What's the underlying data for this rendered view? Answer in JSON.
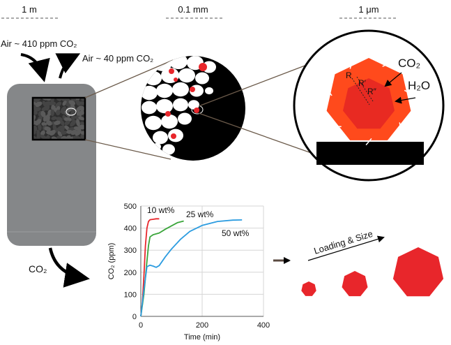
{
  "scale_labels": {
    "macro": "1 m",
    "micro": "0.1 mm",
    "nano": "1 μm"
  },
  "flows": {
    "air_in": "Air ~ 410 ppm CO₂",
    "air_out": "Air ~ 40 ppm CO₂",
    "co2_out": "CO₂"
  },
  "particle_zoom": {
    "co2_label": "CO₂",
    "h2o_label": "H₂O",
    "radius_labels": [
      "R",
      "R′",
      "R″"
    ]
  },
  "trend": {
    "label": "Loading & Size"
  },
  "colors": {
    "column": "#858789",
    "pellet_bed": "#3a3a3a",
    "support_sphere": "#ffffff",
    "amine": "#e8262b",
    "particle_outer": "#ff4a1c",
    "particle_inner": "#e82a22",
    "series_10": "#e8262b",
    "series_25": "#3aa53a",
    "series_50": "#2c9ce0",
    "arrow_dark": "#5a4a40"
  },
  "chart_data": {
    "type": "line",
    "title": "",
    "xlabel": "Time (min)",
    "ylabel": "CO₂ (ppm)",
    "xlim": [
      0,
      400
    ],
    "ylim": [
      0,
      500
    ],
    "xticks": [
      0,
      200,
      400
    ],
    "yticks": [
      0,
      100,
      200,
      300,
      400,
      500
    ],
    "grid": true,
    "series": [
      {
        "name": "10 wt%",
        "color": "#e8262b",
        "x": [
          0,
          5,
          10,
          15,
          20,
          25,
          30,
          40,
          50,
          60
        ],
        "y": [
          0,
          60,
          180,
          320,
          400,
          430,
          438,
          440,
          442,
          442
        ]
      },
      {
        "name": "25 wt%",
        "color": "#3aa53a",
        "x": [
          0,
          10,
          20,
          25,
          30,
          40,
          60,
          80,
          100,
          120,
          140
        ],
        "y": [
          0,
          100,
          250,
          320,
          360,
          370,
          378,
          395,
          410,
          425,
          432
        ]
      },
      {
        "name": "50 wt%",
        "color": "#2c9ce0",
        "x": [
          0,
          10,
          20,
          30,
          40,
          50,
          60,
          80,
          100,
          130,
          160,
          200,
          250,
          300,
          330
        ],
        "y": [
          0,
          120,
          225,
          232,
          228,
          222,
          230,
          270,
          305,
          350,
          385,
          412,
          430,
          436,
          437
        ]
      }
    ]
  }
}
